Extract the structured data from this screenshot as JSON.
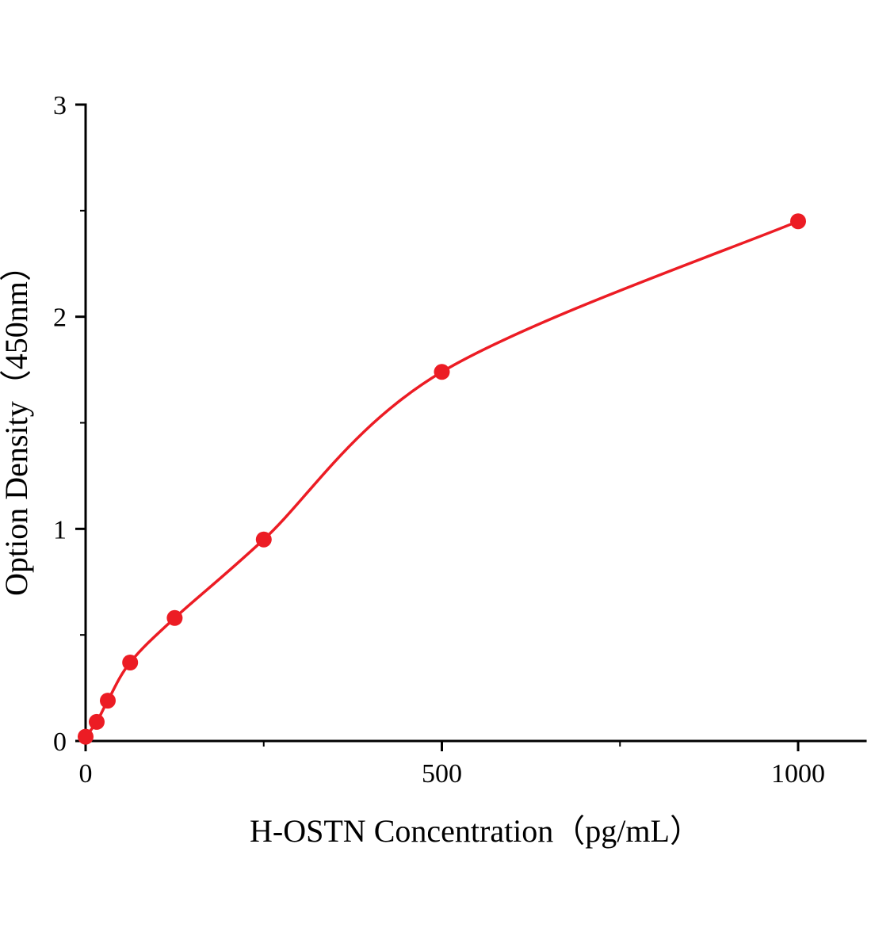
{
  "figure": {
    "background": "#ffffff"
  },
  "chart_data": {
    "type": "scatter",
    "title": "",
    "xlabel": "H-OSTN Concentration（pg/mL）",
    "ylabel": "Option Density（450nm）",
    "x": [
      0,
      15.6,
      31.2,
      62.5,
      125,
      250,
      500,
      1000
    ],
    "y": [
      0.02,
      0.09,
      0.19,
      0.37,
      0.58,
      0.95,
      1.74,
      2.45
    ],
    "curve": "smooth saturating fit through data points",
    "xlim": [
      0,
      1095
    ],
    "ylim": [
      0,
      3
    ],
    "x_ticks": [
      0,
      500,
      1000
    ],
    "x_minor_ticks": [
      250,
      750
    ],
    "y_ticks": [
      0,
      1,
      2,
      3
    ],
    "y_minor_ticks": [
      0.5,
      1.5,
      2.5
    ],
    "grid": false,
    "legend": false,
    "marker": "circle",
    "point_color": "#ec1c24",
    "line_color": "#ec1c24",
    "axis_color": "#000000"
  }
}
